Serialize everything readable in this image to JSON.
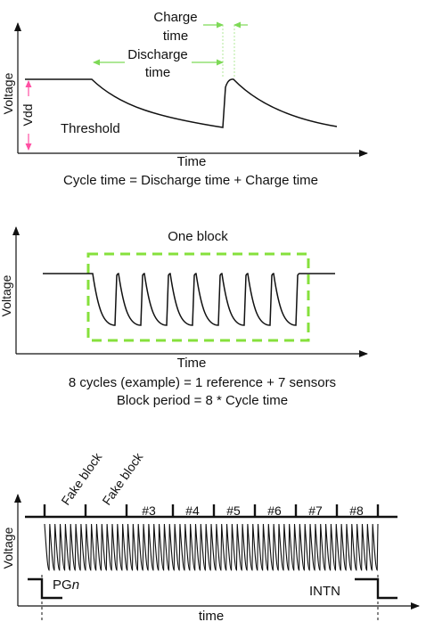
{
  "panel1": {
    "y_axis_label": "Voltage",
    "x_axis_label": "Time",
    "charge_time_label": [
      "Charge",
      "time"
    ],
    "discharge_time_label": [
      "Discharge",
      "time"
    ],
    "vdd_label": "Vdd",
    "threshold_label": "Threshold",
    "caption": "Cycle time = Discharge time + Charge time"
  },
  "panel2": {
    "y_axis_label": "Voltage",
    "x_axis_label": "Time",
    "block_label": "One block",
    "caption_line1": "8 cycles (example) = 1 reference + 7 sensors",
    "caption_line2": "Block period = 8 * Cycle time",
    "cycles_per_block": 8,
    "sensor_pulses": 7
  },
  "panel3": {
    "y_axis_label": "Voltage",
    "x_axis_label": "time",
    "fake_block_labels": [
      "Fake block",
      "Fake block"
    ],
    "block_numbers": [
      "#3",
      "#4",
      "#5",
      "#6",
      "#7",
      "#8"
    ],
    "pg_label_prefix": "PG",
    "pg_label_suffix": "n",
    "intn_label": "INTN"
  },
  "colors": {
    "line": "#111111",
    "arrow_green": "#7ed957",
    "arrow_pink": "#ff4fa3",
    "box_green": "#86e03c"
  }
}
